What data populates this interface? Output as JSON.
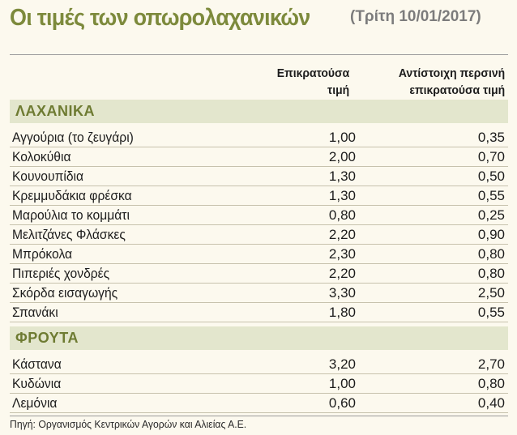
{
  "title": "Οι τιμές των οπωρολαχανικών",
  "date": "(Τρίτη 10/01/2017)",
  "columns": {
    "current_line1": "Επικρατούσα",
    "current_line2": "τιμή",
    "last_year_line1": "Αντίστοιχη περσινή",
    "last_year_line2": "επικρατούσα τιμή"
  },
  "source": "Πηγή: Οργανισμός Κεντρικών Αγορών και Αλιείας Α.Ε.",
  "chart_data": {
    "type": "table",
    "columns": [
      "Επικρατούσα τιμή",
      "Αντίστοιχη περσινή επικρατούσα τιμή"
    ],
    "sections": [
      {
        "name": "ΛΑΧΑΝΙΚΑ",
        "rows": [
          {
            "name": "Αγγούρια (το ζευγάρι)",
            "current": "1,00",
            "last_year": "0,35"
          },
          {
            "name": "Κολοκύθια",
            "current": "2,00",
            "last_year": "0,70"
          },
          {
            "name": "Κουνουπίδια",
            "current": "1,30",
            "last_year": "0,50"
          },
          {
            "name": "Κρεμμυδάκια φρέσκα",
            "current": "1,30",
            "last_year": "0,55"
          },
          {
            "name": "Μαρούλια το κομμάτι",
            "current": "0,80",
            "last_year": "0,25"
          },
          {
            "name": "Μελιτζάνες Φλάσκες",
            "current": "2,20",
            "last_year": "0,90"
          },
          {
            "name": "Μπρόκολα",
            "current": "2,30",
            "last_year": "0,80"
          },
          {
            "name": "Πιπεριές χονδρές",
            "current": "2,20",
            "last_year": "0,80"
          },
          {
            "name": "Σκόρδα εισαγωγής",
            "current": "3,30",
            "last_year": "2,50"
          },
          {
            "name": "Σπανάκι",
            "current": "1,80",
            "last_year": "0,55"
          }
        ]
      },
      {
        "name": "ΦΡΟΥΤΑ",
        "rows": [
          {
            "name": "Κάστανα",
            "current": "3,20",
            "last_year": "2,70"
          },
          {
            "name": "Κυδώνια",
            "current": "1,00",
            "last_year": "0,80"
          },
          {
            "name": "Λεμόνια",
            "current": "0,60",
            "last_year": "0,40"
          }
        ]
      }
    ]
  }
}
